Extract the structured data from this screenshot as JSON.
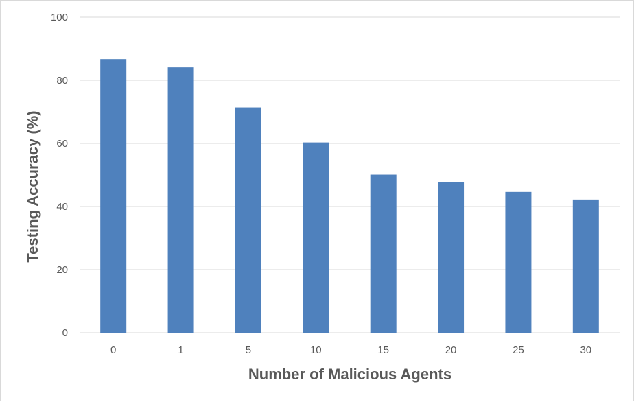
{
  "chart_data": {
    "type": "bar",
    "title": "",
    "xlabel": "Number of Malicious Agents",
    "ylabel": "Testing Accuracy (%)",
    "categories": [
      "0",
      "1",
      "5",
      "10",
      "15",
      "20",
      "25",
      "30"
    ],
    "values": [
      86.7,
      84.1,
      71.4,
      60.3,
      50.1,
      47.7,
      44.6,
      42.2
    ],
    "ylim": [
      0,
      100
    ],
    "yticks": [
      0,
      20,
      40,
      60,
      80,
      100
    ],
    "grid": true,
    "legend": "none",
    "bar_color": "#4F81BD",
    "grid_color": "#d9d9d9"
  }
}
